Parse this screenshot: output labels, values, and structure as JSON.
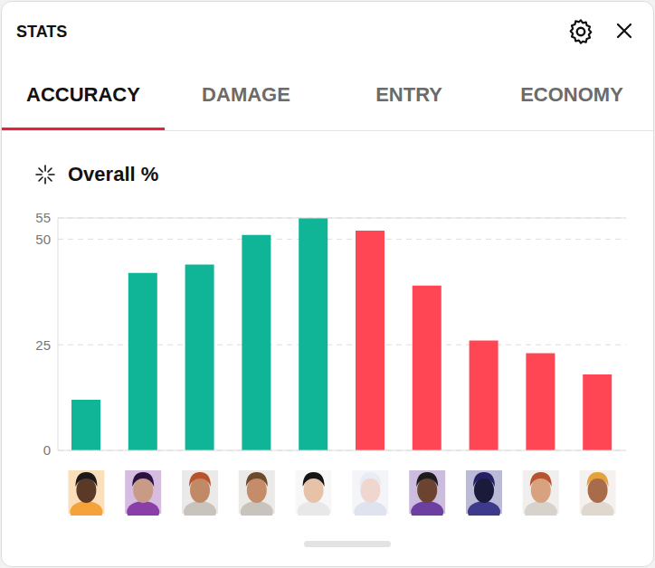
{
  "panel": {
    "title": "STATS",
    "tabs": [
      "ACCURACY",
      "DAMAGE",
      "ENTRY",
      "ECONOMY"
    ],
    "active_tab": "ACCURACY"
  },
  "chart_data": {
    "type": "bar",
    "title": "Overall %",
    "categories": [
      null,
      null,
      null,
      null,
      null,
      null,
      null,
      null,
      null,
      null
    ],
    "values": [
      12,
      42,
      44,
      51,
      55,
      52,
      39,
      26,
      23,
      18
    ],
    "colors": [
      "#10b597",
      "#10b597",
      "#10b597",
      "#10b597",
      "#10b597",
      "#ff4655",
      "#ff4655",
      "#ff4655",
      "#ff4655",
      "#ff4655"
    ],
    "ylim": [
      0,
      55
    ],
    "yticks": [
      0,
      25,
      50,
      55
    ],
    "grid": true
  }
}
